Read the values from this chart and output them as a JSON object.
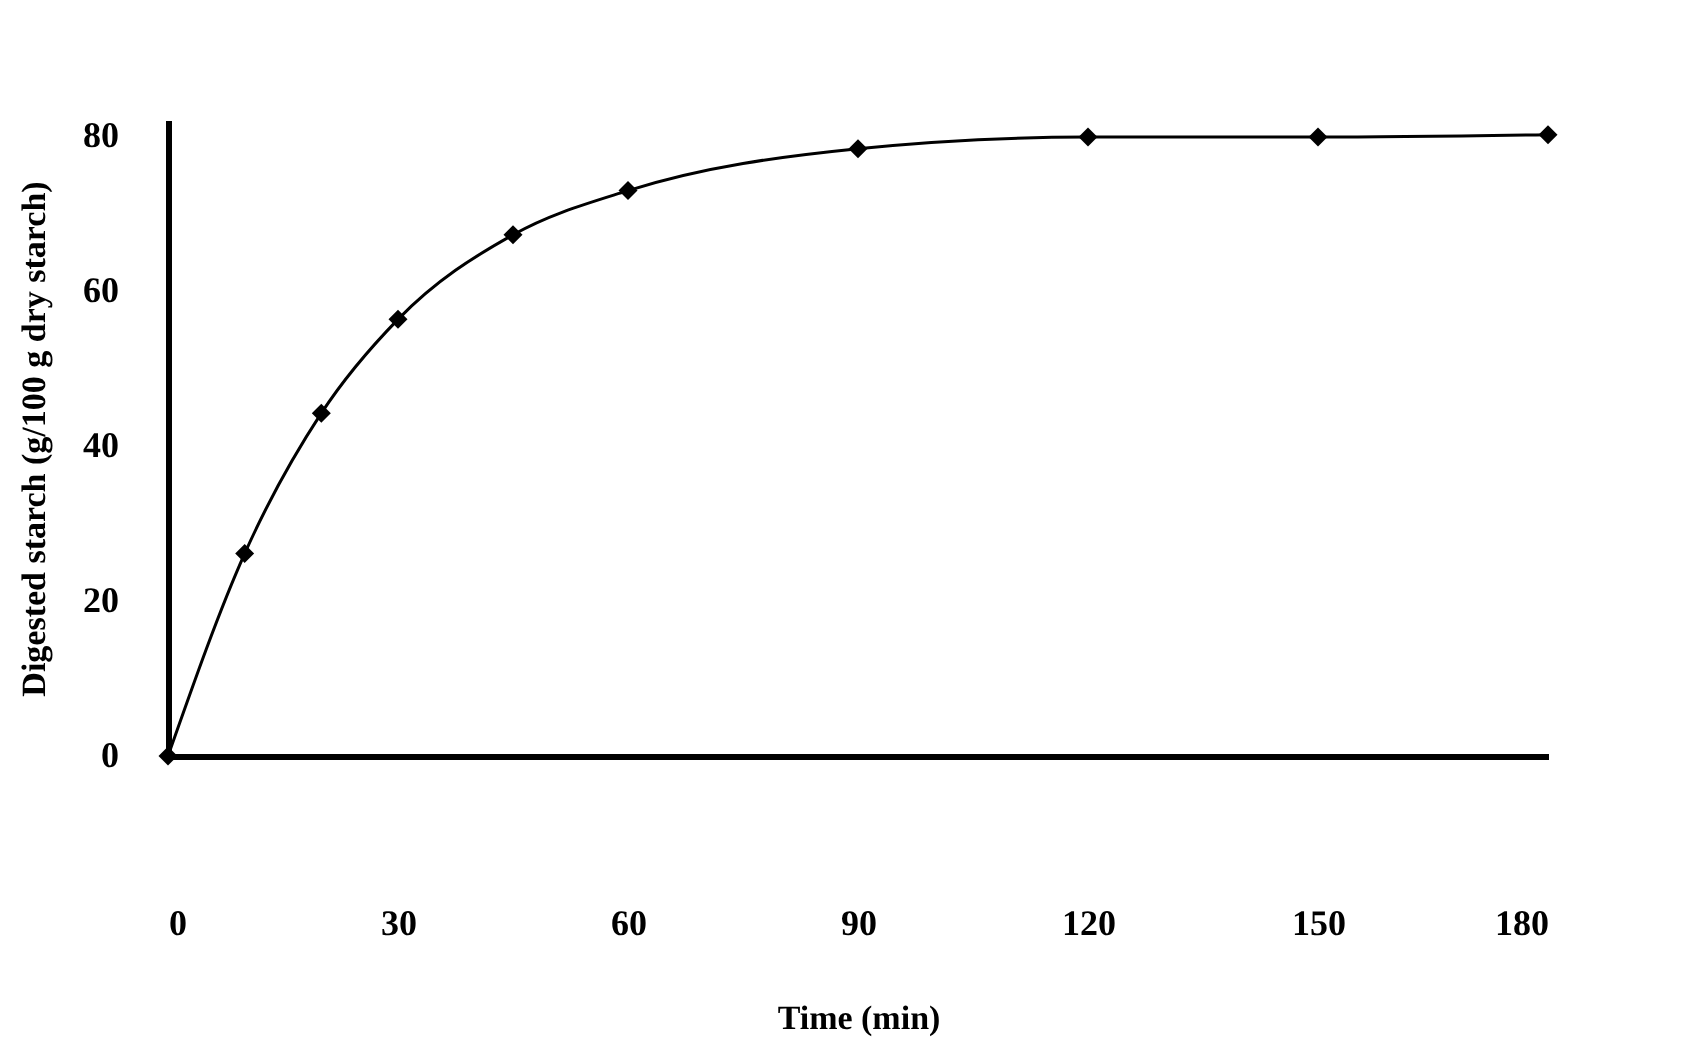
{
  "chart_data": {
    "type": "line",
    "xlabel": "Time (min)",
    "ylabel": "Digested starch (g/100 g dry starch)",
    "x": [
      0,
      10,
      20,
      30,
      45,
      60,
      90,
      120,
      150,
      180
    ],
    "series": [
      {
        "color": "#000000",
        "values": [
          0,
          26.1,
          44.2,
          56.3,
          67.2,
          72.9,
          78.3,
          79.8,
          79.8,
          80.1
        ]
      }
    ],
    "xlim": [
      0,
      180
    ],
    "xticks": [
      0,
      30,
      60,
      90,
      120,
      150,
      180
    ],
    "ylim": [
      0,
      82
    ],
    "yticks": [
      0,
      20,
      40,
      60,
      80
    ],
    "grid": false,
    "marker": "diamond",
    "line_style": "solid"
  }
}
